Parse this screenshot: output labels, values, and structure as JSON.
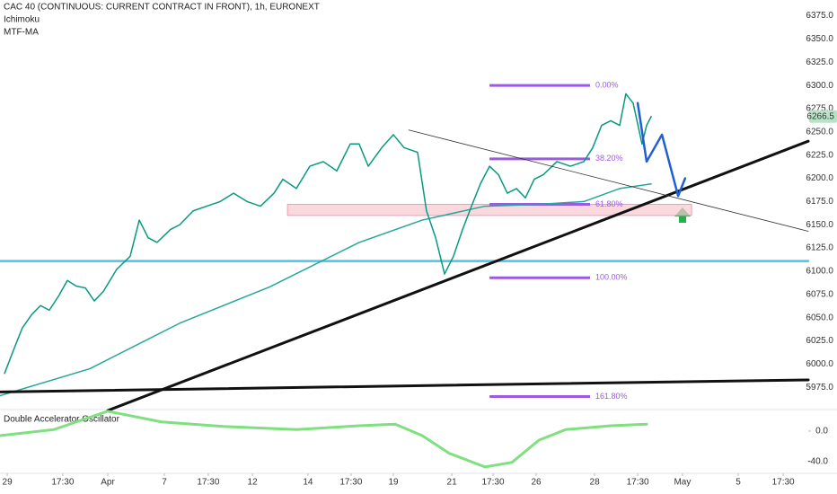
{
  "chart_data": [
    {
      "type": "line",
      "title": "CAC 40 (CONTINUOUS: CURRENT CONTRACT IN FRONT), 1h, EURONEXT",
      "indicators": [
        "Ichimoku",
        "MTF-MA"
      ],
      "xlim": [
        0,
        300
      ],
      "ylim": [
        5952,
        6392
      ],
      "xticks": [
        {
          "value": 2.7,
          "label": "29"
        },
        {
          "value": 23.3,
          "label": "17:30"
        },
        {
          "value": 40,
          "label": "Apr"
        },
        {
          "value": 61,
          "label": "7"
        },
        {
          "value": 77.3,
          "label": "17:30"
        },
        {
          "value": 93.7,
          "label": "12"
        },
        {
          "value": 114.3,
          "label": "14"
        },
        {
          "value": 130.3,
          "label": "17:30"
        },
        {
          "value": 146,
          "label": "19"
        },
        {
          "value": 167.7,
          "label": "21"
        },
        {
          "value": 183,
          "label": "17:30"
        },
        {
          "value": 199,
          "label": "26"
        },
        {
          "value": 220.7,
          "label": "28"
        },
        {
          "value": 236.7,
          "label": "17:30"
        },
        {
          "value": 253.3,
          "label": "May"
        },
        {
          "value": 274,
          "label": "5"
        },
        {
          "value": 290.7,
          "label": "17:30"
        }
      ],
      "yticks": [
        {
          "value": 5975,
          "label": "5975.0"
        },
        {
          "value": 6000,
          "label": "6000.0"
        },
        {
          "value": 6025,
          "label": "6025.0"
        },
        {
          "value": 6050,
          "label": "6050.0"
        },
        {
          "value": 6075,
          "label": "6075.0"
        },
        {
          "value": 6100,
          "label": "6100.0"
        },
        {
          "value": 6125,
          "label": "6125.0"
        },
        {
          "value": 6150,
          "label": "6150.0"
        },
        {
          "value": 6175,
          "label": "6175.0"
        },
        {
          "value": 6200,
          "label": "6200.0"
        },
        {
          "value": 6225,
          "label": "6225.0"
        },
        {
          "value": 6250,
          "label": "6250.0"
        },
        {
          "value": 6275,
          "label": "6275.0"
        },
        {
          "value": 6300,
          "label": "6300.0"
        },
        {
          "value": 6325,
          "label": "6325.0"
        },
        {
          "value": 6350,
          "label": "6350.0"
        },
        {
          "value": 6375,
          "label": "6375.0"
        }
      ],
      "last_price": 6266.5,
      "zone": {
        "x": [
          106.7,
          256.7
        ],
        "values": [
          6160,
          6172
        ],
        "color": "#f8c8d0"
      },
      "levels": {
        "x": [
          181.7,
          219
        ],
        "color": "#9c5ae0",
        "items": [
          {
            "value": 6300,
            "label": "0.00%"
          },
          {
            "value": 6221,
            "label": "38.20%"
          },
          {
            "value": 6172,
            "label": "61.80%"
          },
          {
            "value": 6093,
            "label": "100.00%"
          },
          {
            "value": 5965,
            "label": "161.80%"
          }
        ]
      },
      "series": [
        {
          "color": "#4dc3e8",
          "width": 2.5,
          "x": [
            0,
            300
          ],
          "values": [
            6111,
            6111
          ]
        },
        {
          "color": "#26a69a",
          "width": 1.5,
          "x": [
            0,
            33.3,
            66.7,
            100,
            133.3,
            156.7,
            180,
            200,
            216.7,
            230,
            241.7
          ],
          "values": [
            5966,
            5995,
            6044,
            6083,
            6131,
            6155,
            6170,
            6172,
            6175,
            6189,
            6194
          ]
        },
        {
          "color": "#089981",
          "width": 1.5,
          "x": [
            1.7,
            5,
            8.3,
            11.7,
            15,
            18.3,
            21.7,
            25,
            28.3,
            31.7,
            35,
            38.3,
            43.3,
            48.3,
            51.7,
            55,
            58.3,
            63.3,
            66.7,
            71.7,
            76.7,
            81.7,
            86.7,
            91.7,
            96.7,
            101.7,
            105,
            110,
            115,
            120,
            125,
            130,
            133.3,
            136.7,
            141.7,
            146,
            150,
            155,
            158.3,
            161.7,
            165,
            168.3,
            171.7,
            175,
            178.3,
            181.7,
            185,
            188.3,
            191.7,
            195,
            198.3,
            201.7,
            206.7,
            211.7,
            216.7,
            220,
            223.3,
            226.7,
            230,
            232.3,
            235,
            238.3,
            240,
            241.7
          ],
          "values": [
            5990,
            6015,
            6039,
            6053,
            6063,
            6058,
            6073,
            6090,
            6084,
            6082,
            6068,
            6078,
            6102,
            6116,
            6155,
            6136,
            6131,
            6145,
            6150,
            6165,
            6170,
            6175,
            6184,
            6175,
            6170,
            6184,
            6199,
            6189,
            6213,
            6218,
            6208,
            6237,
            6237,
            6213,
            6233,
            6247,
            6233,
            6228,
            6165,
            6136,
            6097,
            6116,
            6145,
            6170,
            6194,
            6213,
            6204,
            6184,
            6189,
            6179,
            6199,
            6204,
            6218,
            6213,
            6218,
            6233,
            6257,
            6262,
            6257,
            6291,
            6281,
            6237,
            6257,
            6266.5
          ]
        },
        {
          "color": "#111111",
          "width": 3,
          "x": [
            0,
            300
          ],
          "values": [
            5970,
            5983
          ]
        },
        {
          "color": "#111111",
          "width": 3,
          "x": [
            40,
            300
          ],
          "values": [
            5950,
            6240
          ]
        },
        {
          "color": "#333333",
          "width": 0.8,
          "x": [
            151.7,
            300
          ],
          "values": [
            6252,
            6143
          ]
        },
        {
          "color": "#1e5fd6",
          "width": 2.5,
          "x": [
            236.7,
            240,
            245.7,
            251.7,
            254.3
          ],
          "values": [
            6281,
            6218,
            6247,
            6181,
            6200
          ]
        }
      ]
    },
    {
      "type": "line",
      "title": "Double Accelerator Oscillator",
      "ylim": [
        -53,
        27
      ],
      "yticks": [
        {
          "value": 0,
          "label": "0.0"
        },
        {
          "value": -40,
          "label": "-40.0"
        }
      ],
      "series": [
        {
          "color": "#7ee07e",
          "width": 3,
          "x": [
            0,
            20,
            40,
            60,
            83.3,
            110,
            133.3,
            146.7,
            156.7,
            166.7,
            180,
            190,
            200,
            210,
            226.7,
            240
          ],
          "values": [
            -6,
            2,
            26,
            12,
            6,
            2,
            7,
            9,
            -6,
            -29,
            -47,
            -41,
            -12,
            2,
            7,
            9
          ]
        }
      ]
    }
  ]
}
